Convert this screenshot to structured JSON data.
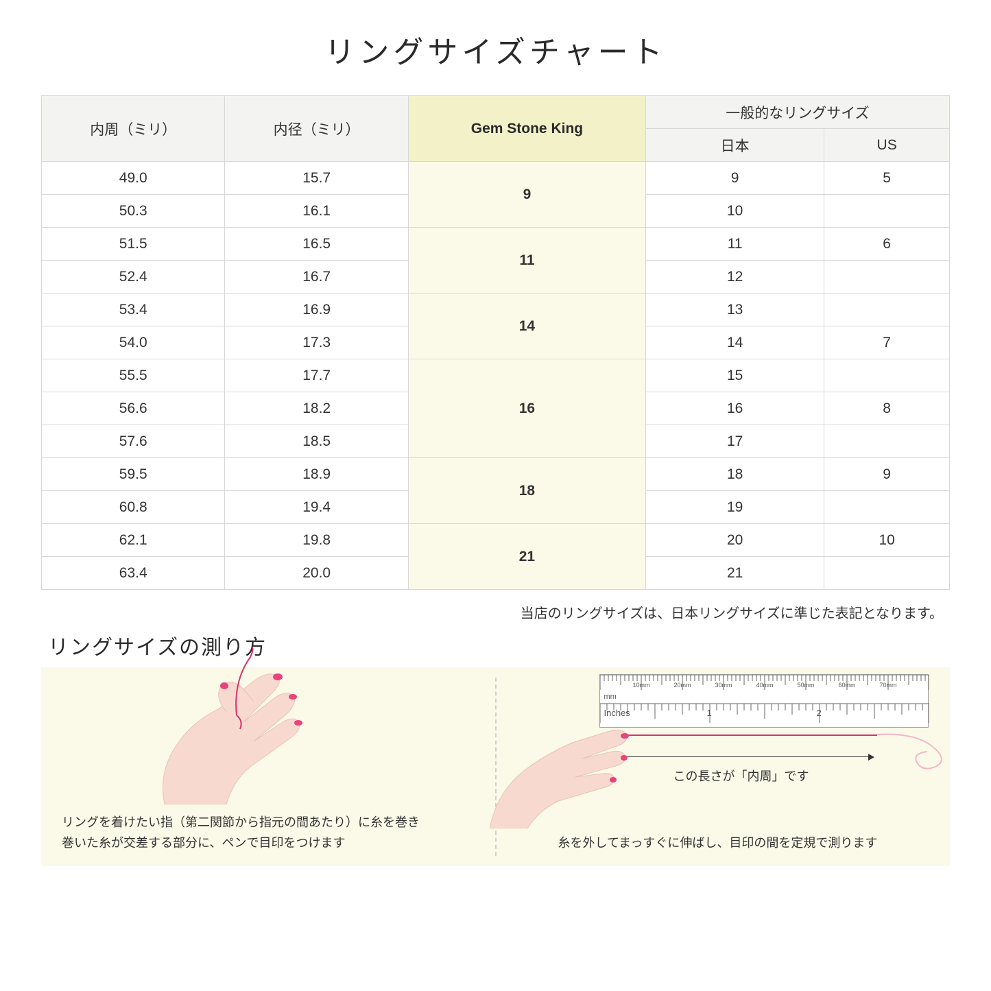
{
  "title": "リングサイズチャート",
  "headers": {
    "circumference": "内周（ミリ）",
    "diameter": "内径（ミリ）",
    "gsk": "Gem Stone King",
    "general": "一般的なリングサイズ",
    "japan": "日本",
    "us": "US"
  },
  "groups": [
    {
      "gsk": "9",
      "rows": [
        {
          "c": "49.0",
          "d": "15.7",
          "jp": "9",
          "us": "5"
        },
        {
          "c": "50.3",
          "d": "16.1",
          "jp": "10",
          "us": ""
        }
      ]
    },
    {
      "gsk": "11",
      "rows": [
        {
          "c": "51.5",
          "d": "16.5",
          "jp": "11",
          "us": "6"
        },
        {
          "c": "52.4",
          "d": "16.7",
          "jp": "12",
          "us": ""
        }
      ]
    },
    {
      "gsk": "14",
      "rows": [
        {
          "c": "53.4",
          "d": "16.9",
          "jp": "13",
          "us": ""
        },
        {
          "c": "54.0",
          "d": "17.3",
          "jp": "14",
          "us": "7"
        }
      ]
    },
    {
      "gsk": "16",
      "rows": [
        {
          "c": "55.5",
          "d": "17.7",
          "jp": "15",
          "us": ""
        },
        {
          "c": "56.6",
          "d": "18.2",
          "jp": "16",
          "us": "8"
        },
        {
          "c": "57.6",
          "d": "18.5",
          "jp": "17",
          "us": ""
        }
      ]
    },
    {
      "gsk": "18",
      "rows": [
        {
          "c": "59.5",
          "d": "18.9",
          "jp": "18",
          "us": "9"
        },
        {
          "c": "60.8",
          "d": "19.4",
          "jp": "19",
          "us": ""
        }
      ]
    },
    {
      "gsk": "21",
      "rows": [
        {
          "c": "62.1",
          "d": "19.8",
          "jp": "20",
          "us": "10"
        },
        {
          "c": "63.4",
          "d": "20.0",
          "jp": "21",
          "us": ""
        }
      ]
    }
  ],
  "note": "当店のリングサイズは、日本リングサイズに準じた表記となります。",
  "howto_title": "リングサイズの測り方",
  "howto_left_caption": "リングを着けたい指（第二関節から指元の間あたり）に糸を巻き\n巻いた糸が交差する部分に、ペンで目印をつけます",
  "howto_right_caption": "糸を外してまっすぐに伸ばし、目印の間を定規で測ります",
  "measure_label": "この長さが「内周」です",
  "ruler_mm": "mm",
  "ruler_inches": "Inches",
  "ruler_ticks_mm": [
    "10mm",
    "20mm",
    "30mm",
    "40mm",
    "50mm",
    "60mm",
    "70mm"
  ],
  "colors": {
    "bg": "#ffffff",
    "header_bg": "#f3f3f1",
    "gsk_header_bg": "#f3f1c8",
    "gsk_cell_bg": "#fbfae8",
    "border": "#d8d8d8",
    "howto_bg": "#fbf9e8",
    "skin": "#f7d9cf",
    "nail": "#e6447a",
    "thread": "#d6336c"
  }
}
